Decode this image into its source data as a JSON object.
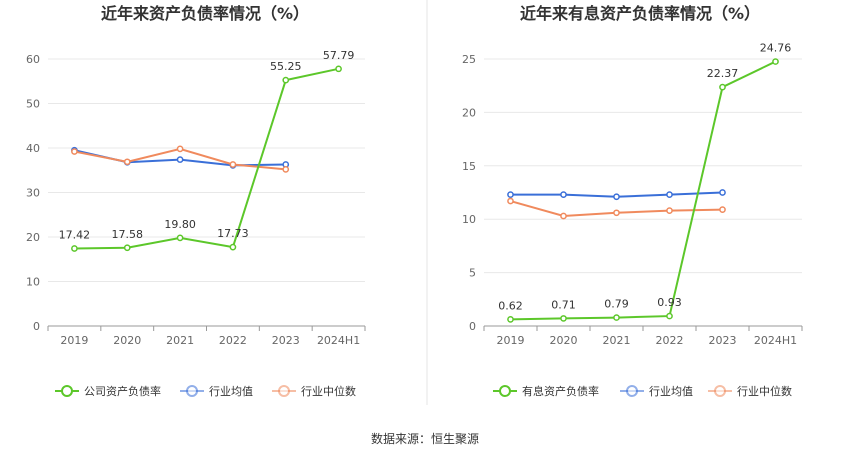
{
  "source": "数据来源：恒生聚源",
  "colors": {
    "company": "#5cc72a",
    "avg": "#3a6fd8",
    "median": "#f08a5d"
  },
  "chart_data": [
    {
      "type": "line",
      "title": "近年来资产负债率情况（%）",
      "categories": [
        "2019",
        "2020",
        "2021",
        "2022",
        "2023",
        "2024H1"
      ],
      "ylim": [
        0,
        60
      ],
      "yticks": [
        "0",
        "10",
        "20",
        "30",
        "40",
        "50",
        "60"
      ],
      "grid": true,
      "legend_position": "bottom",
      "series": [
        {
          "name": "公司资产负债率",
          "values": [
            17.42,
            17.58,
            19.8,
            17.73,
            55.25,
            57.79
          ],
          "labels": [
            "17.42",
            "17.58",
            "19.80",
            "17.73",
            "55.25",
            "57.79"
          ]
        },
        {
          "name": "行业均值",
          "values": [
            39.5,
            36.8,
            37.4,
            36.1,
            36.3,
            null
          ]
        },
        {
          "name": "行业中位数",
          "values": [
            39.2,
            36.9,
            39.8,
            36.3,
            35.2,
            null
          ]
        }
      ]
    },
    {
      "type": "line",
      "title": "近年来有息资产负债率情况（%）",
      "categories": [
        "2019",
        "2020",
        "2021",
        "2022",
        "2023",
        "2024H1"
      ],
      "ylim": [
        0,
        25
      ],
      "yticks": [
        "0",
        "5",
        "10",
        "15",
        "20",
        "25"
      ],
      "grid": true,
      "legend_position": "bottom",
      "series": [
        {
          "name": "有息资产负债率",
          "values": [
            0.62,
            0.71,
            0.79,
            0.93,
            22.37,
            24.76
          ],
          "labels": [
            "0.62",
            "0.71",
            "0.79",
            "0.93",
            "22.37",
            "24.76"
          ]
        },
        {
          "name": "行业均值",
          "values": [
            12.3,
            12.3,
            12.1,
            12.3,
            12.5,
            null
          ]
        },
        {
          "name": "行业中位数",
          "values": [
            11.7,
            10.3,
            10.6,
            10.8,
            10.9,
            null
          ]
        }
      ]
    }
  ]
}
